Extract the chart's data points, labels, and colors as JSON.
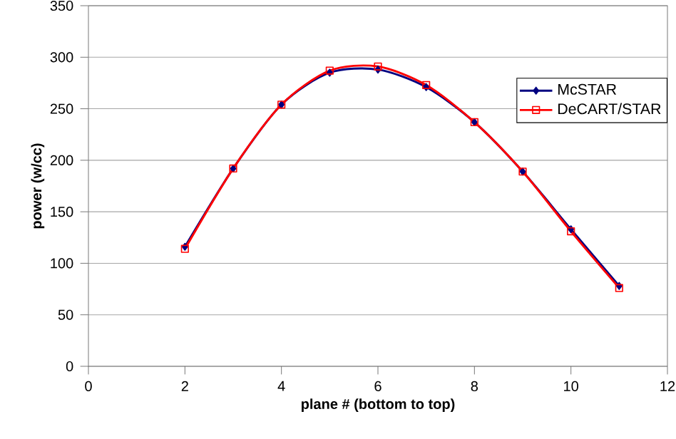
{
  "chart_data": {
    "type": "line",
    "xlabel": "plane # (bottom to top)",
    "ylabel": "power (w/cc)",
    "xlim": [
      0,
      12
    ],
    "xticks": [
      0,
      2,
      4,
      6,
      8,
      10,
      12
    ],
    "ylim": [
      0,
      350
    ],
    "yticks": [
      0,
      50,
      100,
      150,
      200,
      250,
      300,
      350
    ],
    "grid": "y",
    "legend": "top right",
    "line_style": "solid",
    "series": [
      {
        "name": "McSTAR",
        "color": "#000080",
        "marker": "diamond",
        "x": [
          2,
          3,
          4,
          5,
          6,
          7,
          8,
          9,
          10,
          11
        ],
        "values": [
          116,
          192,
          254,
          285,
          288,
          271,
          237,
          189,
          133,
          78
        ]
      },
      {
        "name": "DeCART/STAR",
        "color": "#ff0000",
        "marker": "square",
        "x": [
          2,
          3,
          4,
          5,
          6,
          7,
          8,
          9,
          10,
          11
        ],
        "values": [
          114,
          192,
          254,
          287,
          291,
          273,
          237,
          189,
          131,
          76
        ]
      }
    ]
  }
}
